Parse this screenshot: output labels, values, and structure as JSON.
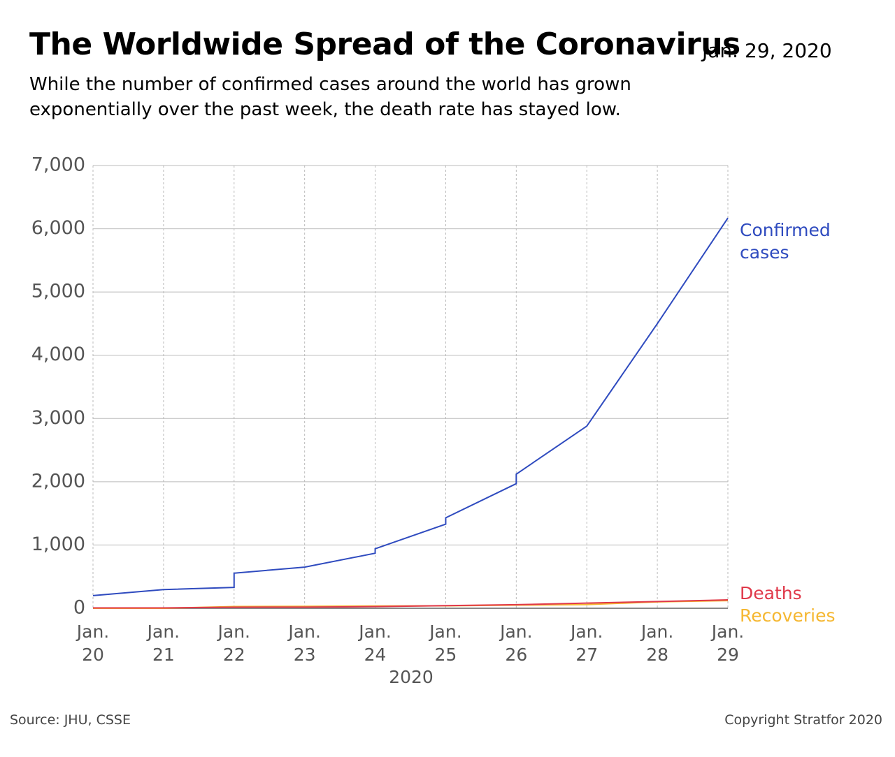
{
  "chart_data": {
    "type": "line",
    "title": "The Worldwide Spread of the Coronavirus",
    "date": "Jan. 29, 2020",
    "subtitle": "While the number of confirmed cases around the world has grown exponentially over the past week, the death rate has stayed low.",
    "xlabel": "2020",
    "source": "Source: JHU, CSSE",
    "copyright": "Copyright Stratfor 2020",
    "xlim": [
      20,
      29
    ],
    "xticks": [
      {
        "value": 20,
        "label": "Jan. 20"
      },
      {
        "value": 21,
        "label": "Jan. 21"
      },
      {
        "value": 22,
        "label": "Jan. 22"
      },
      {
        "value": 23,
        "label": "Jan. 23"
      },
      {
        "value": 24,
        "label": "Jan. 24"
      },
      {
        "value": 25,
        "label": "Jan. 25"
      },
      {
        "value": 26,
        "label": "Jan. 26"
      },
      {
        "value": 27,
        "label": "Jan. 27"
      },
      {
        "value": 28,
        "label": "Jan. 28"
      },
      {
        "value": 29,
        "label": "Jan. 29"
      }
    ],
    "ylim": [
      0,
      7000
    ],
    "yticks": [
      0,
      {
        "value": 1000,
        "label": "1,000"
      },
      {
        "value": 2000,
        "label": "2,000"
      },
      {
        "value": 3000,
        "label": "3,000"
      },
      {
        "value": 4000,
        "label": "4,000"
      },
      {
        "value": 5000,
        "label": "5,000"
      },
      {
        "value": 6000,
        "label": "6,000"
      },
      {
        "value": 7000,
        "label": "7,000"
      }
    ],
    "grid": true,
    "series": [
      {
        "name": "Recoveries",
        "color": "#f5b731",
        "x": [
          20,
          21,
          22,
          23,
          24,
          25,
          26,
          27,
          28,
          29
        ],
        "values": [
          0,
          0,
          28,
          30,
          36,
          39,
          49,
          58,
          101,
          120
        ]
      },
      {
        "name": "Deaths",
        "color": "#e0394a",
        "x": [
          20,
          21,
          22,
          23,
          24,
          25,
          26,
          27,
          28,
          29
        ],
        "values": [
          6,
          6,
          17,
          18,
          26,
          42,
          56,
          82,
          106,
          132
        ]
      },
      {
        "name": "Confirmed cases",
        "color": "#2f4bbf",
        "x": [
          20,
          21,
          22,
          22,
          23,
          24,
          24,
          25,
          25,
          26,
          26,
          27,
          28,
          29
        ],
        "values": [
          200,
          295,
          330,
          555,
          650,
          870,
          940,
          1330,
          1430,
          1970,
          2120,
          2880,
          4500,
          6170
        ]
      }
    ]
  }
}
